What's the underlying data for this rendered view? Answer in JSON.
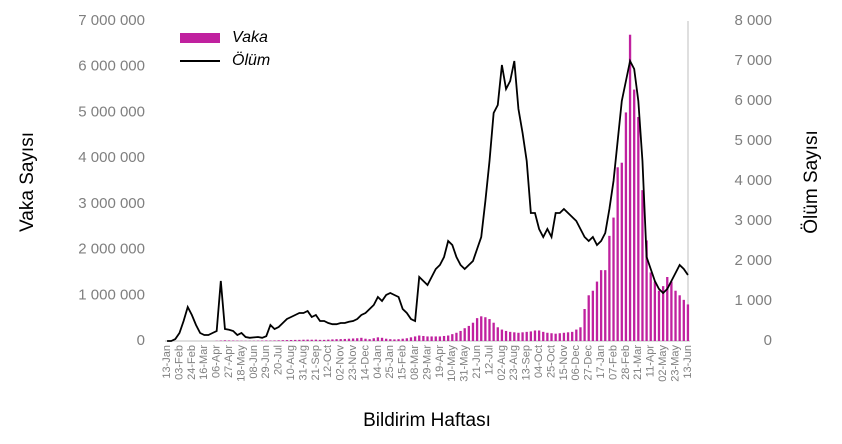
{
  "chart_data": {
    "type": "bar-line",
    "categories": [
      "13-Jan",
      null,
      null,
      "03-Feb",
      null,
      null,
      "24-Feb",
      null,
      null,
      "16-Mar",
      null,
      null,
      "06-Apr",
      null,
      null,
      "27-Apr",
      null,
      null,
      "18-May",
      null,
      null,
      "08-Jun",
      null,
      null,
      "29-Jun",
      null,
      null,
      "20-Jul",
      null,
      null,
      "10-Aug",
      null,
      null,
      "31-Aug",
      null,
      null,
      "21-Sep",
      null,
      null,
      "12-Oct",
      null,
      null,
      "02-Nov",
      null,
      null,
      "23-Nov",
      null,
      null,
      "14-Dec",
      null,
      null,
      "04-Jan",
      null,
      null,
      "25-Jan",
      null,
      null,
      "15-Feb",
      null,
      null,
      "08-Mar",
      null,
      null,
      "29-Mar",
      null,
      null,
      "19-Apr",
      null,
      null,
      "10-May",
      null,
      null,
      "31-May",
      null,
      null,
      "21-Jun",
      null,
      null,
      "12-Jul",
      null,
      null,
      "02-Aug",
      null,
      null,
      "23-Aug",
      null,
      null,
      "13-Sep",
      null,
      null,
      "04-Oct",
      null,
      null,
      "25-Oct",
      null,
      null,
      "15-Nov",
      null,
      null,
      "06-Dec",
      null,
      null,
      "27-Dec",
      null,
      null,
      "17-Jan",
      null,
      null,
      "07-Feb",
      null,
      null,
      "28-Feb",
      null,
      null,
      "21-Mar",
      null,
      null,
      "11-Apr",
      null,
      null,
      "02-May",
      null,
      null,
      "23-May",
      null,
      null,
      "13-Jun"
    ],
    "series": [
      {
        "name": "Vaka",
        "type": "bar",
        "color": "#c0219f",
        "values": [
          0,
          0,
          0,
          0,
          0,
          0,
          0,
          0,
          0,
          0,
          0,
          0,
          5000,
          10000,
          15000,
          12000,
          10000,
          8000,
          6000,
          5000,
          5000,
          6000,
          8000,
          10000,
          12000,
          10000,
          12000,
          15000,
          18000,
          20000,
          22000,
          24000,
          25000,
          28000,
          30000,
          28000,
          30000,
          25000,
          25000,
          30000,
          35000,
          40000,
          42000,
          45000,
          50000,
          55000,
          60000,
          70000,
          50000,
          40000,
          60000,
          80000,
          70000,
          50000,
          40000,
          35000,
          40000,
          50000,
          60000,
          80000,
          100000,
          120000,
          110000,
          100000,
          100000,
          100000,
          100000,
          110000,
          120000,
          150000,
          180000,
          220000,
          280000,
          330000,
          400000,
          500000,
          540000,
          520000,
          480000,
          400000,
          300000,
          250000,
          220000,
          200000,
          190000,
          180000,
          190000,
          200000,
          210000,
          230000,
          230000,
          200000,
          180000,
          170000,
          160000,
          170000,
          180000,
          190000,
          200000,
          250000,
          300000,
          700000,
          1000000,
          1100000,
          1300000,
          1550000,
          1550000,
          2300000,
          2700000,
          3800000,
          3900000,
          5000000,
          6700000,
          5500000,
          4900000,
          3300000,
          2200000,
          1500000,
          1300000,
          1100000,
          1200000,
          1400000,
          1300000,
          1100000,
          1000000,
          900000,
          800000
        ]
      },
      {
        "name": "Ölüm",
        "type": "line",
        "axis": "y2",
        "color": "#000000",
        "values": [
          0,
          0,
          50,
          200,
          500,
          850,
          650,
          400,
          200,
          150,
          150,
          200,
          250,
          1500,
          300,
          280,
          250,
          150,
          200,
          100,
          80,
          90,
          100,
          80,
          120,
          400,
          300,
          350,
          450,
          550,
          600,
          650,
          700,
          700,
          750,
          600,
          650,
          500,
          500,
          450,
          420,
          420,
          450,
          450,
          480,
          500,
          550,
          650,
          700,
          800,
          900,
          1100,
          1000,
          1150,
          1200,
          1150,
          1100,
          800,
          700,
          550,
          500,
          1600,
          1500,
          1400,
          1600,
          1800,
          1900,
          2100,
          2500,
          2400,
          2100,
          1900,
          1800,
          1900,
          2000,
          2300,
          2600,
          3500,
          4500,
          5700,
          5900,
          6900,
          6300,
          6500,
          7000,
          5800,
          5200,
          4500,
          3200,
          3200,
          2800,
          2600,
          2800,
          2600,
          3200,
          3200,
          3300,
          3200,
          3100,
          3000,
          2800,
          2600,
          2500,
          2600,
          2400,
          2500,
          2700,
          3300,
          4000,
          5000,
          6000,
          6500,
          7000,
          6800,
          6000,
          4500,
          2100,
          1800,
          1500,
          1300,
          1200,
          1300,
          1500,
          1700,
          1900,
          1800,
          1650
        ]
      }
    ],
    "ylabel": "Vaka Sayısı",
    "y2label": "Ölüm Sayısı",
    "xlabel": "Bildirim Haftası",
    "ylim": [
      0,
      7000000
    ],
    "yticks": [
      0,
      {
        "value": 1000000,
        "label": "1 000 000"
      },
      {
        "value": 2000000,
        "label": "2 000 000"
      },
      {
        "value": 3000000,
        "label": "3 000 000"
      },
      {
        "value": 4000000,
        "label": "4 000 000"
      },
      {
        "value": 5000000,
        "label": "5 000 000"
      },
      {
        "value": 6000000,
        "label": "6 000 000"
      },
      {
        "value": 7000000,
        "label": "7 000 000"
      }
    ],
    "y2lim": [
      0,
      8000
    ],
    "y2ticks": [
      0,
      {
        "value": 1000,
        "label": "1 000"
      },
      {
        "value": 2000,
        "label": "2 000"
      },
      {
        "value": 3000,
        "label": "3 000"
      },
      {
        "value": 4000,
        "label": "4 000"
      },
      {
        "value": 5000,
        "label": "5 000"
      },
      {
        "value": 6000,
        "label": "6 000"
      },
      {
        "value": 7000,
        "label": "7 000"
      },
      {
        "value": 8000,
        "label": "8 000"
      }
    ],
    "legend": "upper-left"
  }
}
